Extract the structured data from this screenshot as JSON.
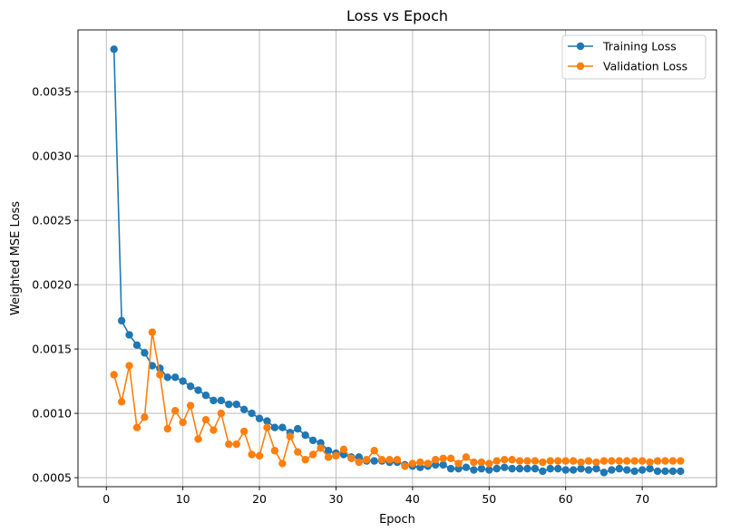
{
  "chart_data": {
    "type": "line",
    "title": "Loss vs Epoch",
    "xlabel": "Epoch",
    "ylabel": "Weighted MSE Loss",
    "xlim": [
      -3.7,
      79.7
    ],
    "ylim": [
      0.00043,
      0.00398
    ],
    "xticks": [
      0,
      10,
      20,
      30,
      40,
      50,
      60,
      70
    ],
    "yticks": [
      0.0005,
      0.001,
      0.0015,
      0.002,
      0.0025,
      0.003,
      0.0035
    ],
    "ytick_labels": [
      "0.0005",
      "0.0010",
      "0.0015",
      "0.0020",
      "0.0025",
      "0.0030",
      "0.0035"
    ],
    "grid": true,
    "legend_position": "top-right",
    "markers": true,
    "x": [
      1,
      2,
      3,
      4,
      5,
      6,
      7,
      8,
      9,
      10,
      11,
      12,
      13,
      14,
      15,
      16,
      17,
      18,
      19,
      20,
      21,
      22,
      23,
      24,
      25,
      26,
      27,
      28,
      29,
      30,
      31,
      32,
      33,
      34,
      35,
      36,
      37,
      38,
      39,
      40,
      41,
      42,
      43,
      44,
      45,
      46,
      47,
      48,
      49,
      50,
      51,
      52,
      53,
      54,
      55,
      56,
      57,
      58,
      59,
      60,
      61,
      62,
      63,
      64,
      65,
      66,
      67,
      68,
      69,
      70,
      71,
      72,
      73,
      74,
      75
    ],
    "series": [
      {
        "name": "Training Loss",
        "color": "#1f77b4",
        "values": [
          0.00383,
          0.00172,
          0.00161,
          0.00153,
          0.00147,
          0.00137,
          0.00135,
          0.00128,
          0.00128,
          0.00125,
          0.00121,
          0.00118,
          0.00114,
          0.0011,
          0.0011,
          0.00107,
          0.00107,
          0.00103,
          0.001,
          0.00096,
          0.00094,
          0.00089,
          0.00089,
          0.00085,
          0.00088,
          0.00083,
          0.00079,
          0.00077,
          0.00071,
          0.00069,
          0.00068,
          0.00066,
          0.00066,
          0.00063,
          0.00063,
          0.00063,
          0.00062,
          0.00062,
          0.0006,
          0.00059,
          0.00058,
          0.00059,
          0.0006,
          0.0006,
          0.00057,
          0.00057,
          0.00058,
          0.00056,
          0.00057,
          0.00056,
          0.00057,
          0.00058,
          0.00057,
          0.00057,
          0.00057,
          0.00057,
          0.00055,
          0.00057,
          0.00057,
          0.00056,
          0.00056,
          0.00057,
          0.00056,
          0.00057,
          0.00054,
          0.00056,
          0.00057,
          0.00056,
          0.00055,
          0.00056,
          0.00057,
          0.00055,
          0.00055,
          0.00055,
          0.00055
        ]
      },
      {
        "name": "Validation Loss",
        "color": "#ff7f0e",
        "values": [
          0.0013,
          0.00109,
          0.00137,
          0.00089,
          0.00097,
          0.00163,
          0.0013,
          0.00088,
          0.00102,
          0.00093,
          0.00106,
          0.0008,
          0.00095,
          0.00087,
          0.001,
          0.00076,
          0.00076,
          0.00086,
          0.00068,
          0.00067,
          0.00089,
          0.00071,
          0.00061,
          0.00082,
          0.0007,
          0.00064,
          0.00068,
          0.00073,
          0.00066,
          0.00067,
          0.00072,
          0.00065,
          0.00062,
          0.00064,
          0.00071,
          0.00064,
          0.00064,
          0.00064,
          0.00059,
          0.00061,
          0.00062,
          0.00061,
          0.00064,
          0.00065,
          0.00065,
          0.00061,
          0.00066,
          0.00062,
          0.00062,
          0.00061,
          0.00063,
          0.00064,
          0.00064,
          0.00063,
          0.00063,
          0.00063,
          0.00062,
          0.00063,
          0.00063,
          0.00063,
          0.00063,
          0.00062,
          0.00063,
          0.00062,
          0.00063,
          0.00063,
          0.00063,
          0.00063,
          0.00063,
          0.00063,
          0.00062,
          0.00063,
          0.00063,
          0.00063,
          0.00063
        ]
      }
    ]
  }
}
